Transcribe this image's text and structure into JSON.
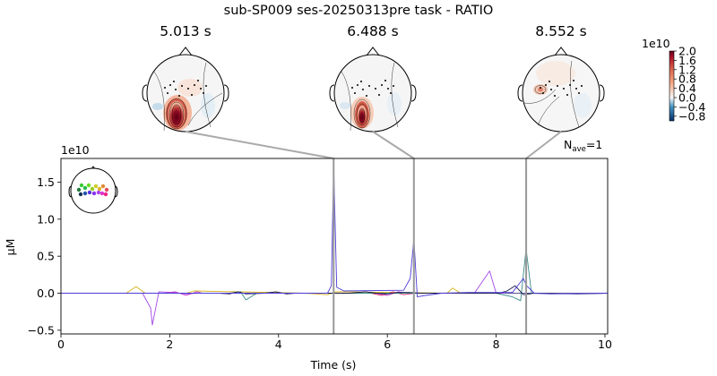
{
  "figure": {
    "title": "sub-SP009 ses-20250313pre task - RATIO"
  },
  "topomaps": [
    {
      "time_label": "5.013 s",
      "time": 5.013
    },
    {
      "time_label": "6.488 s",
      "time": 6.488
    },
    {
      "time_label": "8.552 s",
      "time": 8.552
    }
  ],
  "colorbar": {
    "exponent": "1e10",
    "tick_labels": [
      "2.0",
      "1.6",
      "1.2",
      "0.8",
      "0.4",
      "0.0",
      "−0.4",
      "−0.8"
    ],
    "ticks": [
      2.0,
      1.6,
      1.2,
      0.8,
      0.4,
      0.0,
      -0.4,
      -0.8
    ],
    "range": [
      -1.0,
      2.0
    ],
    "colormap": "RdBu_r"
  },
  "nave": {
    "base": "N",
    "sub": "ave",
    "value": "=1"
  },
  "chart_data": {
    "type": "line",
    "xlabel": "Time (s)",
    "ylabel": "µM",
    "y_exponent": "1e10",
    "xlim": [
      0,
      10.05
    ],
    "ylim": [
      -0.55,
      1.82
    ],
    "x_ticks": [
      0,
      2,
      4,
      6,
      8,
      10
    ],
    "y_ticks": [
      -0.5,
      0.0,
      0.5,
      1.0,
      1.5
    ],
    "y_tick_labels": [
      "−0.5",
      "0.0",
      "0.5",
      "1.0",
      "1.5"
    ],
    "topomap_times": [
      5.013,
      6.488,
      8.552
    ],
    "series": [
      {
        "color": "#d4b21e",
        "x": [
          1.2,
          1.38,
          1.55,
          2.3,
          2.45,
          4.5,
          4.9,
          5.05,
          7.1,
          7.2,
          7.35
        ],
        "y": [
          0,
          0.09,
          0,
          0,
          0.03,
          0,
          -0.02,
          0.02,
          0,
          0.07,
          0
        ]
      },
      {
        "color": "#a347e6",
        "x": [
          1.5,
          1.65,
          1.68,
          1.8,
          2.05,
          2.3,
          2.5,
          7.6,
          7.88,
          8.0,
          8.15
        ],
        "y": [
          0,
          -0.2,
          -0.43,
          0.02,
          0.01,
          -0.01,
          0,
          0,
          0.3,
          0,
          0
        ]
      },
      {
        "color": "#c23acb",
        "x": [
          1.9,
          2.1,
          2.3,
          2.5,
          2.6,
          5.8,
          6.0,
          6.2,
          6.4
        ],
        "y": [
          0,
          0.02,
          -0.03,
          0.02,
          0,
          0,
          -0.03,
          0.02,
          0
        ]
      },
      {
        "color": "#e2377c",
        "x": [
          5.7,
          5.9,
          6.1,
          6.3,
          6.5
        ],
        "y": [
          0,
          -0.03,
          0.02,
          -0.02,
          0
        ]
      },
      {
        "color": "#3a8a8a",
        "x": [
          3.1,
          3.3,
          3.4,
          3.6,
          8.0,
          8.3,
          8.45,
          8.55,
          8.65,
          8.9
        ],
        "y": [
          0,
          0.02,
          -0.09,
          0,
          0,
          -0.05,
          -0.1,
          0.6,
          0,
          0
        ]
      },
      {
        "color": "#1a1a4a",
        "x": [
          2.9,
          3.1,
          3.25,
          3.4,
          3.75,
          3.95,
          4.15,
          4.3,
          5.3,
          5.6,
          5.8,
          6.0,
          6.2,
          6.4,
          6.6,
          8.05,
          8.2,
          8.35,
          8.5,
          8.7,
          9.5,
          10.05
        ],
        "y": [
          0,
          -0.01,
          0.02,
          -0.01,
          0,
          0.02,
          -0.01,
          0,
          0,
          0.02,
          0,
          -0.01,
          0.01,
          0.01,
          0,
          0,
          0.03,
          0.1,
          -0.02,
          0,
          -0.01,
          0
        ]
      },
      {
        "color": "#4d3bd7",
        "x": [
          0,
          4.9,
          4.97,
          5.013,
          5.07,
          5.2,
          6.3,
          6.42,
          6.488,
          6.55,
          6.7,
          7.0,
          7.5,
          8.3,
          8.5,
          8.56,
          8.7,
          9.0,
          10.05
        ],
        "y": [
          0,
          0,
          0.1,
          1.72,
          0.08,
          0.03,
          0.04,
          0.2,
          0.73,
          -0.05,
          -0.03,
          0,
          0.01,
          0.01,
          0.2,
          0.1,
          0,
          -0.01,
          0
        ]
      }
    ]
  }
}
